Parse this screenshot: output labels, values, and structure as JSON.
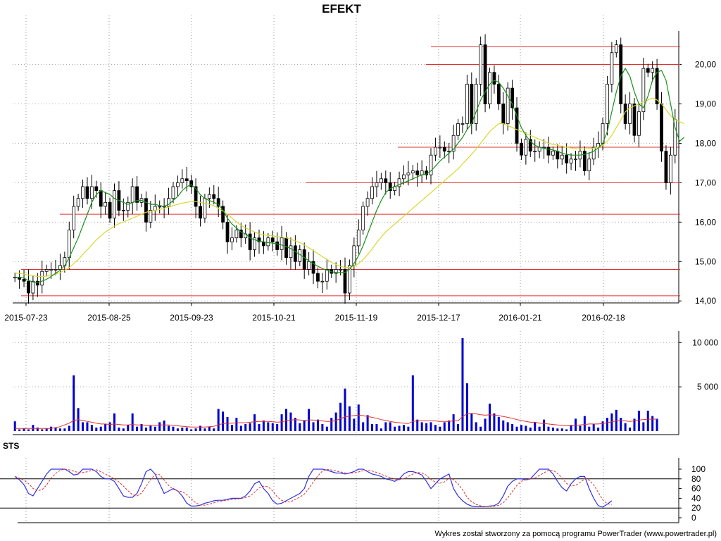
{
  "header": {
    "title": "EFEKT"
  },
  "footer": {
    "credit": "Wykres został stworzony za pomocą programu PowerTrader (www.powertrader.pl)"
  },
  "colors": {
    "price_up": "#ffffff",
    "price_down": "#000000",
    "ma_fast": "#1a8f1a",
    "ma_slow": "#d8d830",
    "support_lines": "#e03030",
    "volume_bars": "#0000cc",
    "volume_ma": "#e03030",
    "sts_k": "#3030e0",
    "sts_d": "#e03030"
  },
  "chart_data": [
    {
      "type": "candlestick",
      "title": "EFEKT",
      "x_ticks": [
        "2015-07-23",
        "2015-08-25",
        "2015-09-23",
        "2015-10-21",
        "2015-11-19",
        "2015-12-17",
        "2016-01-21",
        "2016-02-18"
      ],
      "ylim": [
        14.0,
        20.8
      ],
      "y_ticks": [
        "14,00",
        "15,00",
        "16,00",
        "17,00",
        "18,00",
        "19,00",
        "20,00"
      ],
      "y_tick_values": [
        14,
        15,
        16,
        17,
        18,
        19,
        20
      ],
      "grid": true,
      "horizontal_levels": [
        14.13,
        14.8,
        16.2,
        17.0,
        17.9,
        20.0,
        20.45
      ],
      "close": [
        14.6,
        14.55,
        14.5,
        14.2,
        14.5,
        14.4,
        14.75,
        14.8,
        14.8,
        14.8,
        14.9,
        15.1,
        15.8,
        16.4,
        16.6,
        16.9,
        16.6,
        16.9,
        16.8,
        16.4,
        16.5,
        16.1,
        16.8,
        16.3,
        16.3,
        16.5,
        16.9,
        16.5,
        16.6,
        16.0,
        16.3,
        16.4,
        16.4,
        16.4,
        16.6,
        16.9,
        17.0,
        17.1,
        17.05,
        16.9,
        16.4,
        16.1,
        16.6,
        16.7,
        16.6,
        16.4,
        16.0,
        15.5,
        15.6,
        15.8,
        15.6,
        15.7,
        15.3,
        15.6,
        15.5,
        15.4,
        15.6,
        15.5,
        15.3,
        15.6,
        15.1,
        15.4,
        15.0,
        15.3,
        14.8,
        15.0,
        14.7,
        14.5,
        14.5,
        14.8,
        14.7,
        14.8,
        14.8,
        14.2,
        14.9,
        15.4,
        15.8,
        16.4,
        16.6,
        16.9,
        17.0,
        17.1,
        17.0,
        16.8,
        16.9,
        17.1,
        17.2,
        17.25,
        17.3,
        17.2,
        17.3,
        17.2,
        17.7,
        17.9,
        17.9,
        17.8,
        17.8,
        18.2,
        18.5,
        18.5,
        19.5,
        18.5,
        19.5,
        20.5,
        19.0,
        19.8,
        19.5,
        19.0,
        18.5,
        19.4,
        18.9,
        18.0,
        17.7,
        18.1,
        17.8,
        17.8,
        17.9,
        17.9,
        17.7,
        17.8,
        17.6,
        17.7,
        17.5,
        17.6,
        17.6,
        17.8,
        17.3,
        17.6,
        17.9,
        18.0,
        18.5,
        19.5,
        20.3,
        20.5,
        19.0,
        18.5,
        19.0,
        18.2,
        18.8,
        19.9,
        19.8,
        19.9,
        19.0,
        17.8,
        17.0,
        17.7,
        18.6
      ],
      "ma_fast": [
        14.6,
        14.6,
        14.58,
        14.52,
        14.48,
        14.47,
        14.5,
        14.55,
        14.62,
        14.7,
        14.78,
        14.9,
        15.1,
        15.35,
        15.6,
        15.9,
        16.2,
        16.5,
        16.7,
        16.8,
        16.75,
        16.7,
        16.6,
        16.55,
        16.5,
        16.45,
        16.5,
        16.55,
        16.55,
        16.5,
        16.45,
        16.45,
        16.42,
        16.4,
        16.45,
        16.55,
        16.65,
        16.8,
        16.9,
        16.95,
        16.85,
        16.7,
        16.6,
        16.55,
        16.5,
        16.45,
        16.3,
        16.1,
        15.95,
        15.85,
        15.75,
        15.7,
        15.6,
        15.55,
        15.52,
        15.5,
        15.48,
        15.47,
        15.45,
        15.42,
        15.38,
        15.33,
        15.25,
        15.18,
        15.1,
        15.02,
        14.95,
        14.88,
        14.82,
        14.78,
        14.74,
        14.72,
        14.72,
        14.72,
        14.8,
        14.95,
        15.15,
        15.4,
        15.7,
        16.0,
        16.3,
        16.55,
        16.75,
        16.85,
        16.9,
        16.95,
        17.0,
        17.05,
        17.1,
        17.15,
        17.2,
        17.22,
        17.3,
        17.42,
        17.55,
        17.65,
        17.75,
        17.85,
        18.0,
        18.15,
        18.35,
        18.5,
        18.8,
        19.1,
        19.3,
        19.5,
        19.6,
        19.55,
        19.4,
        19.2,
        19.0,
        18.7,
        18.4,
        18.2,
        18.05,
        17.95,
        17.9,
        17.87,
        17.85,
        17.83,
        17.8,
        17.75,
        17.72,
        17.7,
        17.7,
        17.7,
        17.72,
        17.75,
        17.8,
        17.88,
        18.0,
        18.3,
        18.8,
        19.3,
        19.7,
        19.9,
        19.7,
        19.3,
        19.0,
        18.9,
        19.2,
        19.6,
        19.8,
        19.85,
        19.6,
        19.0,
        18.4,
        18.05,
        18.15
      ],
      "ma_slow": [
        14.7,
        14.7,
        14.68,
        14.66,
        14.64,
        14.62,
        14.62,
        14.63,
        14.65,
        14.68,
        14.72,
        14.78,
        14.85,
        14.95,
        15.05,
        15.18,
        15.3,
        15.42,
        15.55,
        15.65,
        15.75,
        15.82,
        15.9,
        15.96,
        16.0,
        16.05,
        16.1,
        16.15,
        16.2,
        16.25,
        16.28,
        16.3,
        16.32,
        16.35,
        16.38,
        16.42,
        16.45,
        16.48,
        16.5,
        16.52,
        16.52,
        16.5,
        16.48,
        16.45,
        16.42,
        16.35,
        16.28,
        16.2,
        16.1,
        16.0,
        15.92,
        15.85,
        15.8,
        15.75,
        15.7,
        15.68,
        15.66,
        15.65,
        15.63,
        15.62,
        15.6,
        15.57,
        15.52,
        15.48,
        15.42,
        15.35,
        15.28,
        15.2,
        15.12,
        15.05,
        14.98,
        14.92,
        14.88,
        14.85,
        14.85,
        14.88,
        14.95,
        15.05,
        15.18,
        15.32,
        15.48,
        15.62,
        15.75,
        15.85,
        15.95,
        16.05,
        16.15,
        16.25,
        16.35,
        16.45,
        16.55,
        16.65,
        16.75,
        16.85,
        16.95,
        17.05,
        17.15,
        17.25,
        17.35,
        17.48,
        17.6,
        17.72,
        17.85,
        18.0,
        18.15,
        18.3,
        18.4,
        18.5,
        18.5,
        18.45,
        18.4,
        18.35,
        18.3,
        18.25,
        18.2,
        18.15,
        18.1,
        18.05,
        18.0,
        17.97,
        17.95,
        17.92,
        17.9,
        17.88,
        17.87,
        17.86,
        17.86,
        17.87,
        17.88,
        17.9,
        17.95,
        18.05,
        18.2,
        18.4,
        18.6,
        18.8,
        18.9,
        18.95,
        19.0,
        19.05,
        19.1,
        19.15,
        19.1,
        19.0,
        18.85,
        18.7,
        18.6,
        18.55,
        18.5
      ]
    },
    {
      "type": "bar",
      "title": "",
      "y_ticks": [
        "5 000",
        "10 000"
      ],
      "y_tick_values": [
        5000,
        10000
      ],
      "ylim": [
        0,
        10500
      ],
      "values": [
        1100,
        200,
        300,
        200,
        700,
        400,
        200,
        300,
        500,
        400,
        300,
        300,
        600,
        6300,
        2600,
        1000,
        1000,
        700,
        400,
        500,
        800,
        1000,
        2000,
        400,
        300,
        700,
        2000,
        500,
        800,
        400,
        600,
        500,
        1000,
        1200,
        600,
        500,
        300,
        400,
        400,
        200,
        300,
        600,
        300,
        500,
        300,
        2500,
        2200,
        1600,
        700,
        1500,
        600,
        800,
        900,
        1900,
        800,
        1200,
        1000,
        900,
        800,
        1900,
        2500,
        2100,
        1500,
        900,
        1200,
        2500,
        1000,
        1300,
        800,
        500,
        1500,
        2100,
        3200,
        4800,
        2800,
        1400,
        3000,
        1000,
        1800,
        800,
        800,
        300,
        1000,
        1000,
        500,
        600,
        700,
        500,
        6300,
        1300,
        1000,
        900,
        1000,
        700,
        500,
        1000,
        1200,
        1900,
        800,
        10500,
        5400,
        2000,
        1000,
        500,
        1400,
        3100,
        2000,
        1600,
        1200,
        1000,
        800,
        500,
        700,
        600,
        400,
        1000,
        500,
        1300,
        500,
        400,
        300,
        300,
        200,
        700,
        1400,
        600,
        1700,
        500,
        800,
        400,
        1100,
        1500,
        2000,
        2400,
        1500,
        900,
        400,
        1400,
        2300,
        1000,
        2300,
        1700,
        1400
      ],
      "ma": [
        300,
        300,
        300,
        300,
        300,
        300,
        300,
        300,
        300,
        400,
        500,
        700,
        900,
        1200,
        1300,
        1200,
        1100,
        1000,
        900,
        800,
        800,
        750,
        800,
        750,
        700,
        700,
        750,
        700,
        700,
        650,
        650,
        650,
        700,
        700,
        700,
        650,
        600,
        550,
        500,
        450,
        450,
        450,
        450,
        500,
        550,
        700,
        850,
        900,
        900,
        950,
        950,
        950,
        1000,
        1050,
        1100,
        1100,
        1100,
        1050,
        1000,
        1050,
        1150,
        1250,
        1300,
        1250,
        1200,
        1250,
        1250,
        1200,
        1150,
        1100,
        1100,
        1200,
        1400,
        1600,
        1700,
        1750,
        1800,
        1750,
        1650,
        1550,
        1450,
        1300,
        1200,
        1100,
        1000,
        950,
        900,
        850,
        1100,
        1150,
        1150,
        1150,
        1150,
        1150,
        1100,
        1100,
        1100,
        1150,
        1150,
        1650,
        1950,
        2000,
        1950,
        1850,
        1800,
        1850,
        1800,
        1750,
        1650,
        1550,
        1450,
        1300,
        1200,
        1100,
        1000,
        1000,
        900,
        850,
        800,
        750,
        700,
        650,
        600,
        600,
        650,
        700,
        750,
        800,
        800,
        800,
        850,
        950,
        1050,
        1150,
        1150,
        1150,
        1100,
        1150,
        1250,
        1300,
        1350,
        1350,
        1350
      ]
    },
    {
      "type": "line",
      "title": "STS",
      "ylim": [
        0,
        100
      ],
      "y_ticks": [
        "0",
        "20",
        "40",
        "60",
        "80",
        "100"
      ],
      "y_tick_values": [
        0,
        20,
        40,
        60,
        80,
        100
      ],
      "levels": [
        20,
        80
      ],
      "k": [
        85,
        78,
        68,
        50,
        45,
        60,
        75,
        90,
        100,
        100,
        100,
        100,
        95,
        88,
        90,
        100,
        100,
        100,
        95,
        85,
        80,
        80,
        75,
        60,
        45,
        42,
        42,
        50,
        70,
        95,
        100,
        90,
        70,
        50,
        55,
        60,
        55,
        45,
        30,
        24,
        24,
        26,
        30,
        32,
        35,
        36,
        36,
        38,
        40,
        40,
        40,
        45,
        55,
        70,
        75,
        60,
        50,
        35,
        28,
        30,
        35,
        40,
        45,
        50,
        60,
        85,
        100,
        100,
        100,
        98,
        95,
        92,
        92,
        90,
        92,
        95,
        100,
        100,
        95,
        90,
        88,
        85,
        80,
        78,
        75,
        80,
        90,
        95,
        95,
        92,
        88,
        75,
        60,
        70,
        80,
        85,
        90,
        60,
        45,
        35,
        28,
        24,
        23,
        23,
        23,
        24,
        25,
        30,
        45,
        65,
        75,
        80,
        80,
        78,
        80,
        90,
        100,
        100,
        100,
        90,
        75,
        62,
        55,
        70,
        80,
        85,
        85,
        60,
        40,
        25,
        22,
        28,
        35
      ]
    }
  ]
}
